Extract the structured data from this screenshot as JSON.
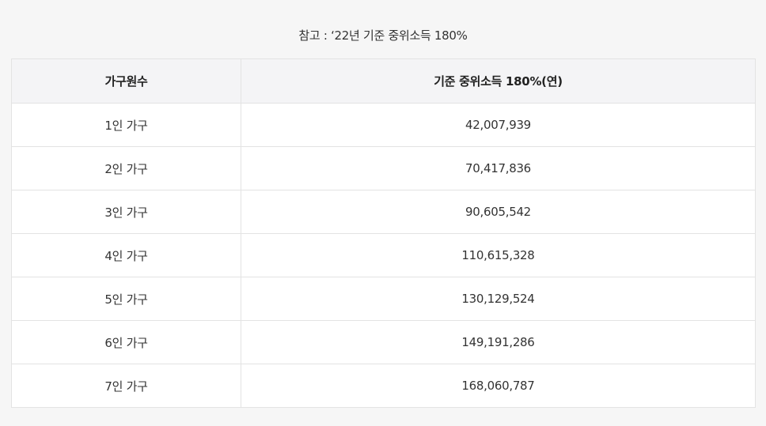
{
  "caption": "참고 : ‘22년 기준 중위소득 180%",
  "table": {
    "headers": [
      "가구원수",
      "기준 중위소득 180%(연)"
    ],
    "rows": [
      [
        "1인 가구",
        "42,007,939"
      ],
      [
        "2인 가구",
        "70,417,836"
      ],
      [
        "3인 가구",
        "90,605,542"
      ],
      [
        "4인 가구",
        "110,615,328"
      ],
      [
        "5인 가구",
        "130,129,524"
      ],
      [
        "6인 가구",
        "149,191,286"
      ],
      [
        "7인 가구",
        "168,060,787"
      ]
    ]
  },
  "colors": {
    "background": "#f6f6f6",
    "header_bg": "#f4f4f6",
    "border": "#e3e3e3",
    "text": "#333333"
  }
}
